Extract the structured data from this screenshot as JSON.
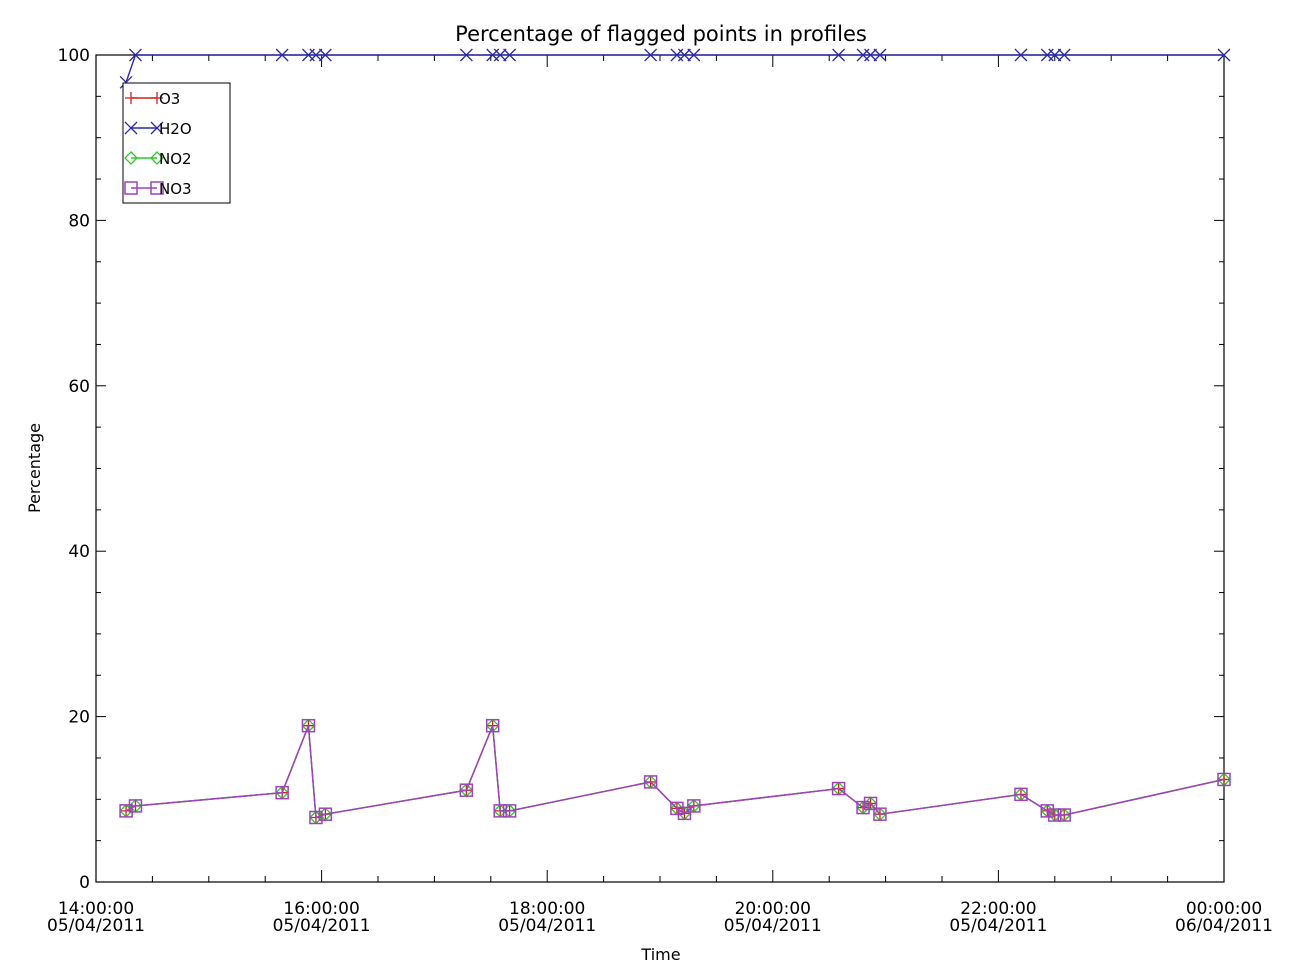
{
  "chart_data": {
    "type": "line",
    "title": "Percentage of flagged points in profiles",
    "xlabel": "Time",
    "ylabel": "Percentage",
    "xlim": [
      "05/04/2011 14:00",
      "06/04/2011 00:00"
    ],
    "ylim": [
      0,
      100
    ],
    "yticks": [
      "0",
      "20",
      "40",
      "60",
      "80",
      "100"
    ],
    "xticks": [
      {
        "time": "14:00:00",
        "date": "05/04/2011"
      },
      {
        "time": "16:00:00",
        "date": "05/04/2011"
      },
      {
        "time": "18:00:00",
        "date": "05/04/2011"
      },
      {
        "time": "20:00:00",
        "date": "05/04/2011"
      },
      {
        "time": "22:00:00",
        "date": "05/04/2011"
      },
      {
        "time": "00:00:00",
        "date": "06/04/2011"
      }
    ],
    "grid": false,
    "legend_position": "top-left",
    "series": [
      {
        "name": "O3",
        "color": "#d42020",
        "marker": "plus",
        "x": [
          "14:16",
          "14:21",
          "15:39",
          "15:53",
          "15:57",
          "16:02",
          "17:17",
          "17:31",
          "17:35",
          "17:40",
          "18:55",
          "19:09",
          "19:13",
          "19:18",
          "20:35",
          "20:48",
          "20:52",
          "20:57",
          "22:12",
          "22:26",
          "22:30",
          "22:35",
          "00:00"
        ],
        "y": [
          8.6,
          9.2,
          10.8,
          18.9,
          7.8,
          8.2,
          11.1,
          18.9,
          8.6,
          8.6,
          12.1,
          8.9,
          8.3,
          9.2,
          11.3,
          9.0,
          9.5,
          8.2,
          10.6,
          8.6,
          8.1,
          8.1,
          12.4
        ]
      },
      {
        "name": "H2O",
        "color": "#2a2aa8",
        "marker": "x",
        "x": [
          "14:16",
          "14:21",
          "15:39",
          "15:53",
          "15:57",
          "16:02",
          "17:17",
          "17:31",
          "17:35",
          "17:40",
          "18:55",
          "19:09",
          "19:13",
          "19:18",
          "20:35",
          "20:48",
          "20:52",
          "20:57",
          "22:12",
          "22:26",
          "22:30",
          "22:35",
          "00:00"
        ],
        "y": [
          96.7,
          100,
          100,
          100,
          100,
          100,
          100,
          100,
          100,
          100,
          100,
          100,
          100,
          100,
          100,
          100,
          100,
          100,
          100,
          100,
          100,
          100,
          100
        ]
      },
      {
        "name": "NO2",
        "color": "#2ec82e",
        "marker": "diamond",
        "x": [
          "14:16",
          "14:21",
          "15:39",
          "15:53",
          "15:57",
          "16:02",
          "17:17",
          "17:31",
          "17:35",
          "17:40",
          "18:55",
          "19:09",
          "19:13",
          "19:18",
          "20:35",
          "20:48",
          "20:52",
          "20:57",
          "22:12",
          "22:26",
          "22:30",
          "22:35",
          "00:00"
        ],
        "y": [
          8.6,
          9.2,
          10.8,
          18.9,
          7.8,
          8.2,
          11.1,
          18.9,
          8.6,
          8.6,
          12.1,
          8.9,
          8.3,
          9.2,
          11.3,
          9.0,
          9.5,
          8.2,
          10.6,
          8.6,
          8.1,
          8.1,
          12.4
        ]
      },
      {
        "name": "NO3",
        "color": "#a040c0",
        "marker": "square",
        "x": [
          "14:16",
          "14:21",
          "15:39",
          "15:53",
          "15:57",
          "16:02",
          "17:17",
          "17:31",
          "17:35",
          "17:40",
          "18:55",
          "19:09",
          "19:13",
          "19:18",
          "20:35",
          "20:48",
          "20:52",
          "20:57",
          "22:12",
          "22:26",
          "22:30",
          "22:35",
          "00:00"
        ],
        "y": [
          8.6,
          9.2,
          10.8,
          18.9,
          7.8,
          8.2,
          11.1,
          18.9,
          8.6,
          8.6,
          12.1,
          8.9,
          8.3,
          9.2,
          11.3,
          9.0,
          9.5,
          8.2,
          10.6,
          8.6,
          8.1,
          8.1,
          12.4
        ]
      }
    ]
  }
}
